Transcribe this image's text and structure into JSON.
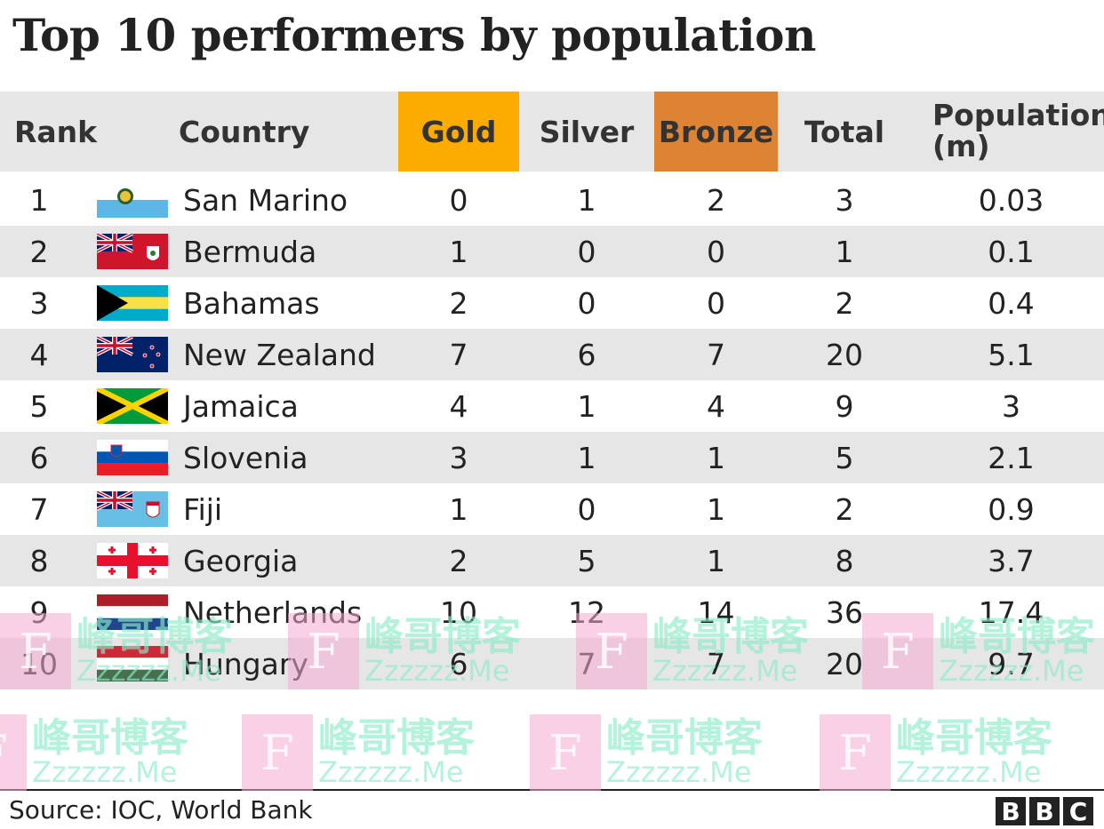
{
  "chart_data": {
    "type": "table",
    "title": "Top 10 performers by population",
    "columns": [
      "Rank",
      "Country",
      "Gold",
      "Silver",
      "Bronze",
      "Total",
      "Population (m)"
    ],
    "rows": [
      {
        "rank": "1",
        "country": "San Marino",
        "flag": "san-marino",
        "gold": "0",
        "silver": "1",
        "bronze": "2",
        "total": "3",
        "population": "0.03"
      },
      {
        "rank": "2",
        "country": "Bermuda",
        "flag": "bermuda",
        "gold": "1",
        "silver": "0",
        "bronze": "0",
        "total": "1",
        "population": "0.1"
      },
      {
        "rank": "3",
        "country": "Bahamas",
        "flag": "bahamas",
        "gold": "2",
        "silver": "0",
        "bronze": "0",
        "total": "2",
        "population": "0.4"
      },
      {
        "rank": "4",
        "country": "New Zealand",
        "flag": "new-zealand",
        "gold": "7",
        "silver": "6",
        "bronze": "7",
        "total": "20",
        "population": "5.1"
      },
      {
        "rank": "5",
        "country": "Jamaica",
        "flag": "jamaica",
        "gold": "4",
        "silver": "1",
        "bronze": "4",
        "total": "9",
        "population": "3"
      },
      {
        "rank": "6",
        "country": "Slovenia",
        "flag": "slovenia",
        "gold": "3",
        "silver": "1",
        "bronze": "1",
        "total": "5",
        "population": "2.1"
      },
      {
        "rank": "7",
        "country": "Fiji",
        "flag": "fiji",
        "gold": "1",
        "silver": "0",
        "bronze": "1",
        "total": "2",
        "population": "0.9"
      },
      {
        "rank": "8",
        "country": "Georgia",
        "flag": "georgia",
        "gold": "2",
        "silver": "5",
        "bronze": "1",
        "total": "8",
        "population": "3.7"
      },
      {
        "rank": "9",
        "country": "Netherlands",
        "flag": "netherlands",
        "gold": "10",
        "silver": "12",
        "bronze": "14",
        "total": "36",
        "population": "17.4"
      },
      {
        "rank": "10",
        "country": "Hungary",
        "flag": "hungary",
        "gold": "6",
        "silver": "7",
        "bronze": "7",
        "total": "20",
        "population": "9.7"
      }
    ]
  },
  "header": {
    "rank": "Rank",
    "country": "Country",
    "gold": "Gold",
    "silver": "Silver",
    "bronze": "Bronze",
    "total": "Total",
    "population_line1": "Population",
    "population_line2": "(m)"
  },
  "colors": {
    "gold": "#fcab00",
    "bronze": "#dd8333",
    "header_bg": "#e6e6e6",
    "stripe": "#e6e6e6"
  },
  "footer": {
    "source": "Source: IOC, World Bank",
    "logo_letters": [
      "B",
      "B",
      "C"
    ]
  },
  "watermark": {
    "chinese": "峰哥博客",
    "url": "Zzzzzz.Me",
    "letter": "F"
  }
}
